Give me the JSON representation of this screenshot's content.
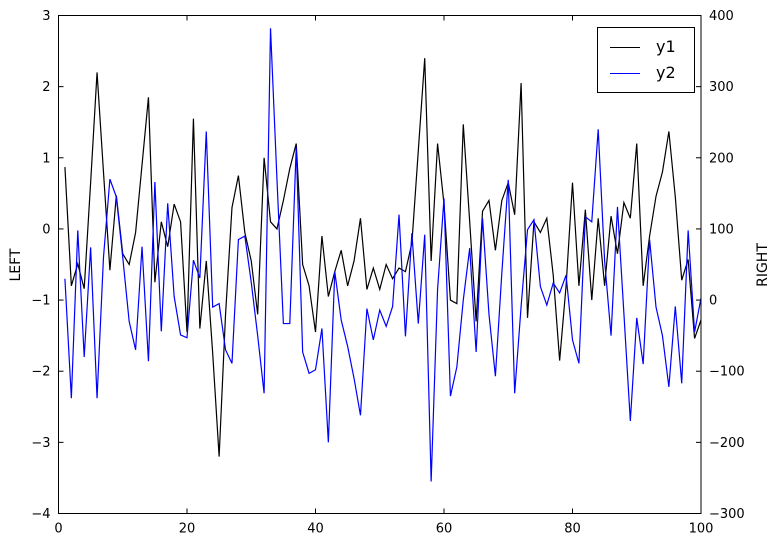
{
  "figure": {
    "background": "#ffffff"
  },
  "chart_data": {
    "type": "line",
    "title": "",
    "xlabel": "",
    "ylabel_left": "LEFT",
    "ylabel_right": "RIGHT",
    "x_range": [
      0,
      100
    ],
    "x_points_start": 1,
    "x_points_step": 1,
    "grid": false,
    "legend_position": "upper right",
    "axes": {
      "x_ticks": [
        0,
        20,
        40,
        60,
        80,
        100
      ],
      "x_tick_labels": [
        "0",
        "20",
        "40",
        "60",
        "80",
        "100"
      ],
      "left_range": [
        -4,
        3
      ],
      "left_ticks": [
        3,
        2,
        1,
        0,
        -1,
        -2,
        -3,
        -4
      ],
      "left_tick_labels": [
        "3",
        "2",
        "1",
        "0",
        "−1",
        "−2",
        "−3",
        "−4"
      ],
      "right_range": [
        -300,
        400
      ],
      "right_ticks": [
        400,
        300,
        200,
        100,
        0,
        -100,
        -200,
        -300
      ],
      "right_tick_labels": [
        "400",
        "300",
        "200",
        "100",
        "0",
        "−100",
        "−200",
        "−300"
      ]
    },
    "series": [
      {
        "name": "y1",
        "color": "#000000",
        "axis": "left",
        "values": [
          0.87,
          -0.8,
          -0.49,
          -0.84,
          0.65,
          2.2,
          0.8,
          -0.58,
          0.47,
          -0.35,
          -0.5,
          -0.05,
          0.9,
          1.85,
          -0.75,
          0.1,
          -0.25,
          0.35,
          0.1,
          -1.45,
          1.55,
          -1.4,
          -0.45,
          -1.75,
          -3.2,
          -1.2,
          0.3,
          0.75,
          -0.05,
          -0.45,
          -1.2,
          1.0,
          0.1,
          0.0,
          0.4,
          0.85,
          1.2,
          -0.5,
          -0.8,
          -1.45,
          -0.1,
          -0.95,
          -0.6,
          -0.3,
          -0.8,
          -0.45,
          0.15,
          -0.85,
          -0.55,
          -0.85,
          -0.5,
          -0.7,
          -0.55,
          -0.6,
          -0.2,
          1.1,
          2.4,
          -0.45,
          1.2,
          0.35,
          -1.0,
          -1.05,
          1.47,
          0.1,
          -1.3,
          0.25,
          0.4,
          -0.3,
          0.4,
          0.65,
          0.2,
          2.05,
          -1.25,
          0.1,
          -0.05,
          0.15,
          -0.65,
          -1.85,
          -0.8,
          0.65,
          -0.8,
          0.27,
          -1.0,
          0.15,
          -0.8,
          0.18,
          -0.35,
          0.37,
          0.15,
          1.2,
          -0.8,
          -0.1,
          0.46,
          0.8,
          1.37,
          0.45,
          -0.72,
          -0.43,
          -1.54,
          -1.28
        ]
      },
      {
        "name": "y2",
        "color": "#0000ff",
        "axis": "right",
        "values": [
          30,
          -138,
          98,
          -80,
          74,
          -138,
          60,
          170,
          145,
          60,
          -30,
          -70,
          75,
          -86,
          166,
          -44,
          136,
          5,
          -49,
          -53,
          56,
          31,
          237,
          -10,
          -5,
          -70,
          -89,
          85,
          90,
          25,
          -50,
          -131,
          382,
          170,
          -33,
          -33,
          215,
          -73,
          -103,
          -98,
          -40,
          -200,
          40,
          -28,
          -65,
          -110,
          -162,
          -12,
          -56,
          -14,
          -37,
          -9,
          120,
          -51,
          94,
          -33,
          92,
          -255,
          15,
          143,
          -135,
          -94,
          0,
          73,
          -73,
          115,
          -20,
          -107,
          38,
          169,
          -131,
          -9,
          99,
          113,
          19,
          -7,
          24,
          10,
          35,
          -56,
          -89,
          117,
          110,
          240,
          55,
          -50,
          131,
          -19,
          -170,
          -25,
          -90,
          85,
          -10,
          -50,
          -122,
          -9,
          -117,
          98,
          -45,
          3
        ]
      }
    ]
  },
  "legend": {
    "entries": [
      {
        "label": "y1",
        "color": "#000000"
      },
      {
        "label": "y2",
        "color": "#0000ff"
      }
    ]
  }
}
